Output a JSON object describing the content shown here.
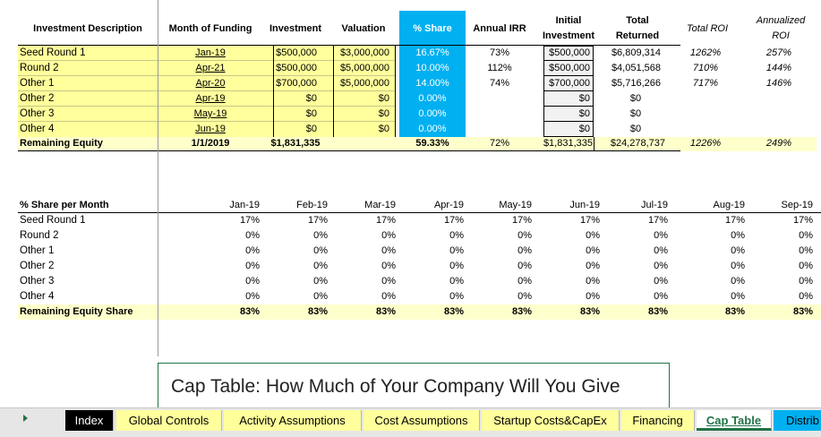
{
  "headers": {
    "description": "Investment Description",
    "month_funding": "Month of Funding",
    "investment": "Investment",
    "valuation": "Valuation",
    "share": "% Share",
    "irr": "Annual IRR",
    "initial_1": "Initial",
    "initial_2": "Investment",
    "total_1": "Total",
    "total_2": "Returned",
    "roi": "Total ROI",
    "aroi_1": "Annualized",
    "aroi_2": "ROI"
  },
  "rows": [
    {
      "name": "Seed Round 1",
      "month": "Jan-19",
      "investment": "$500,000",
      "valuation": "$3,000,000",
      "share": "16.67%",
      "irr": "73%",
      "initial": "$500,000",
      "returned": "$6,809,314",
      "roi": "1262%",
      "aroi": "257%"
    },
    {
      "name": "Round 2",
      "month": "Apr-21",
      "investment": "$500,000",
      "valuation": "$5,000,000",
      "share": "10.00%",
      "irr": "112%",
      "initial": "$500,000",
      "returned": "$4,051,568",
      "roi": "710%",
      "aroi": "144%"
    },
    {
      "name": "Other 1",
      "month": "Apr-20",
      "investment": "$700,000",
      "valuation": "$5,000,000",
      "share": "14.00%",
      "irr": "74%",
      "initial": "$700,000",
      "returned": "$5,716,266",
      "roi": "717%",
      "aroi": "146%"
    },
    {
      "name": "Other 2",
      "month": "Apr-19",
      "investment": "$0",
      "valuation": "$0",
      "share": "0.00%",
      "irr": "",
      "initial": "$0",
      "returned": "$0",
      "roi": "",
      "aroi": ""
    },
    {
      "name": "Other 3",
      "month": "May-19",
      "investment": "$0",
      "valuation": "$0",
      "share": "0.00%",
      "irr": "",
      "initial": "$0",
      "returned": "$0",
      "roi": "",
      "aroi": ""
    },
    {
      "name": "Other 4",
      "month": "Jun-19",
      "investment": "$0",
      "valuation": "$0",
      "share": "0.00%",
      "irr": "",
      "initial": "$0",
      "returned": "$0",
      "roi": "",
      "aroi": ""
    }
  ],
  "remaining": {
    "name": "Remaining Equity",
    "month": "1/1/2019",
    "investment": "$1,831,335",
    "share": "59.33%",
    "irr": "72%",
    "initial": "$1,831,335",
    "returned": "$24,278,737",
    "roi": "1226%",
    "aroi": "249%"
  },
  "monthly": {
    "header_label": "% Share per Month",
    "months": [
      "Jan-19",
      "Feb-19",
      "Mar-19",
      "Apr-19",
      "May-19",
      "Jun-19",
      "Jul-19",
      "Aug-19",
      "Sep-19"
    ],
    "rows": [
      {
        "name": "Seed Round 1",
        "values": [
          "17%",
          "17%",
          "17%",
          "17%",
          "17%",
          "17%",
          "17%",
          "17%",
          "17%"
        ]
      },
      {
        "name": "Round 2",
        "values": [
          "0%",
          "0%",
          "0%",
          "0%",
          "0%",
          "0%",
          "0%",
          "0%",
          "0%"
        ]
      },
      {
        "name": "Other 1",
        "values": [
          "0%",
          "0%",
          "0%",
          "0%",
          "0%",
          "0%",
          "0%",
          "0%",
          "0%"
        ]
      },
      {
        "name": "Other 2",
        "values": [
          "0%",
          "0%",
          "0%",
          "0%",
          "0%",
          "0%",
          "0%",
          "0%",
          "0%"
        ]
      },
      {
        "name": "Other 3",
        "values": [
          "0%",
          "0%",
          "0%",
          "0%",
          "0%",
          "0%",
          "0%",
          "0%",
          "0%"
        ]
      },
      {
        "name": "Other 4",
        "values": [
          "0%",
          "0%",
          "0%",
          "0%",
          "0%",
          "0%",
          "0%",
          "0%",
          "0%"
        ]
      }
    ],
    "total": {
      "name": "Remaining Equity Share",
      "values": [
        "83%",
        "83%",
        "83%",
        "83%",
        "83%",
        "83%",
        "83%",
        "83%",
        "83%"
      ]
    }
  },
  "banner": {
    "title": "Cap Table: How Much of Your Company Will You Give"
  },
  "tabs": {
    "index": "Index",
    "global": "Global Controls",
    "activity": "Activity Assumptions",
    "cost": "Cost Assumptions",
    "startup": "Startup Costs&CapEx",
    "financing": "Financing",
    "cap": "Cap Table",
    "distrib": "Distrib"
  },
  "colors": {
    "accent_blue": "#00b0f0",
    "yellow": "#ffff9c",
    "excel_green": "#217346"
  }
}
